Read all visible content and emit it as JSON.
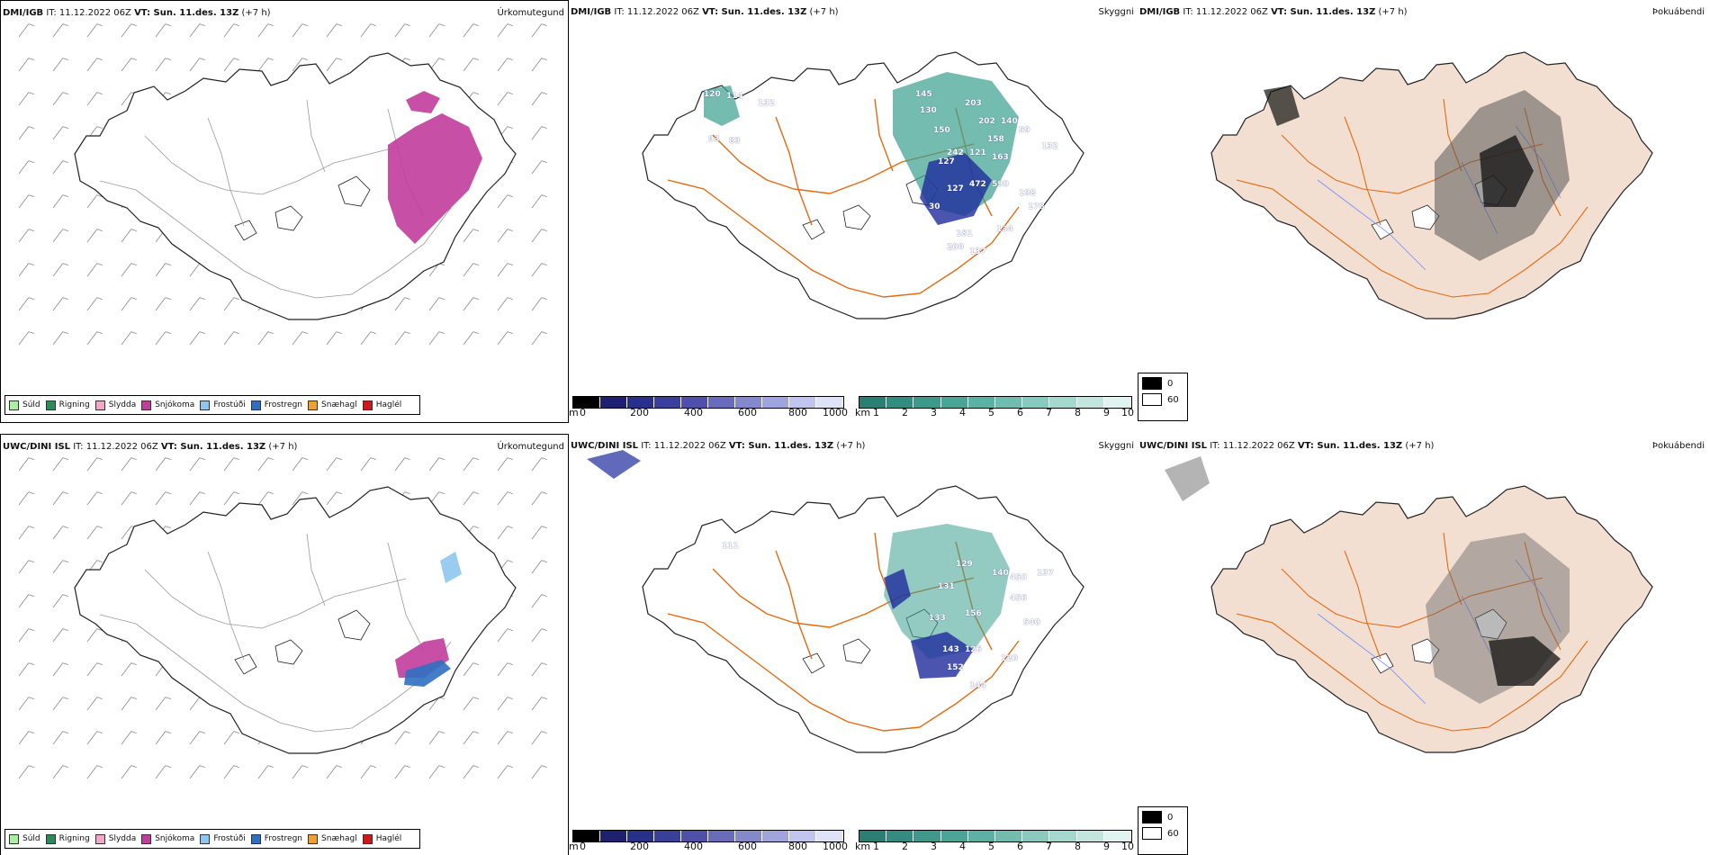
{
  "rows": [
    {
      "id": "top",
      "precip": {
        "title_model": "DMI/IGB",
        "title_it": " IT: 11.12.2022 06Z ",
        "title_vt_label": "VT: Sun. 11.des. 13Z",
        "title_offset": " (+7 h)",
        "right_label": "Úrkomutegund",
        "legend": [
          {
            "label": "Súld",
            "color": "#a8f0a0"
          },
          {
            "label": "Rigning",
            "color": "#2e8b57"
          },
          {
            "label": "Slydda",
            "color": "#f4a6c8"
          },
          {
            "label": "Snjókoma",
            "color": "#c13d9c"
          },
          {
            "label": "Frostúði",
            "color": "#8ec6f0"
          },
          {
            "label": "Frostregn",
            "color": "#2f6fc1"
          },
          {
            "label": "Snæhagl",
            "color": "#f0a030"
          },
          {
            "label": "Haglél",
            "color": "#d11818"
          }
        ]
      },
      "cloud": {
        "title_model": "DMI/IGB",
        "title_it": " IT: 11.12.2022 06Z ",
        "title_vt_label": "VT: Sun. 11.des. 13Z",
        "title_offset": " (+7 h)",
        "right_label": "Skyggni",
        "numbers": [
          "120",
          "114",
          "132",
          "93",
          "83",
          "145",
          "130",
          "150",
          "127",
          "203",
          "202",
          "158",
          "242",
          "121",
          "163",
          "140",
          "59",
          "132",
          "30",
          "127",
          "472",
          "590",
          "198",
          "181",
          "178",
          "134",
          "200",
          "137"
        ],
        "m_scale_unit": "m",
        "m_scale_ticks": [
          "0",
          "200",
          "400",
          "600",
          "800",
          "1000"
        ],
        "km_scale_unit": "km",
        "km_scale_ticks": [
          "1",
          "2",
          "3",
          "4",
          "5",
          "6",
          "7",
          "8",
          "9",
          "10"
        ]
      },
      "fog": {
        "title_model": "DMI/IGB",
        "title_it": " IT: 11.12.2022 06Z ",
        "title_vt_label": "VT: Sun. 11.des. 13Z",
        "title_offset": " (+7 h)",
        "right_label": "Þokuábendi",
        "legend_values": [
          "0",
          "60"
        ]
      }
    },
    {
      "id": "bottom",
      "precip": {
        "title_model": "UWC/DINI ISL",
        "title_it": " IT: 11.12.2022 06Z ",
        "title_vt_label": "VT: Sun. 11.des. 13Z",
        "title_offset": " (+7 h)",
        "right_label": "Úrkomutegund",
        "legend": [
          {
            "label": "Súld",
            "color": "#a8f0a0"
          },
          {
            "label": "Rigning",
            "color": "#2e8b57"
          },
          {
            "label": "Slydda",
            "color": "#f4a6c8"
          },
          {
            "label": "Snjókoma",
            "color": "#c13d9c"
          },
          {
            "label": "Frostúði",
            "color": "#8ec6f0"
          },
          {
            "label": "Frostregn",
            "color": "#2f6fc1"
          },
          {
            "label": "Snæhagl",
            "color": "#f0a030"
          },
          {
            "label": "Haglél",
            "color": "#d11818"
          }
        ]
      },
      "cloud": {
        "title_model": "UWC/DINI ISL",
        "title_it": " IT: 11.12.2022 06Z ",
        "title_vt_label": "VT: Sun. 11.des. 13Z",
        "title_offset": " (+7 h)",
        "right_label": "Skyggni",
        "numbers": [
          "111",
          "131",
          "129",
          "133",
          "156",
          "140",
          "450",
          "456",
          "137",
          "540",
          "143",
          "126",
          "120",
          "152",
          "144"
        ],
        "m_scale_unit": "m",
        "m_scale_ticks": [
          "0",
          "200",
          "400",
          "600",
          "800",
          "1000"
        ],
        "km_scale_unit": "km",
        "km_scale_ticks": [
          "1",
          "2",
          "3",
          "4",
          "5",
          "6",
          "7",
          "8",
          "9",
          "10"
        ]
      },
      "fog": {
        "title_model": "UWC/DINI ISL",
        "title_it": " IT: 11.12.2022 06Z ",
        "title_vt_label": "VT: Sun. 11.des. 13Z",
        "title_offset": " (+7 h)",
        "right_label": "Þokuábendi",
        "legend_values": [
          "0",
          "60"
        ]
      }
    }
  ],
  "colors": {
    "coast": "#222222",
    "roads": "#e36a12",
    "rivers": "#6f8fff",
    "land_fog": "#f3dfd1",
    "snow": "#c13d9c",
    "frost_drizzle": "#8ec6f0",
    "frost_rain": "#2f6fc1",
    "cloud_blue": "#1e2b9c",
    "cloud_teal": "#3aa08f"
  }
}
